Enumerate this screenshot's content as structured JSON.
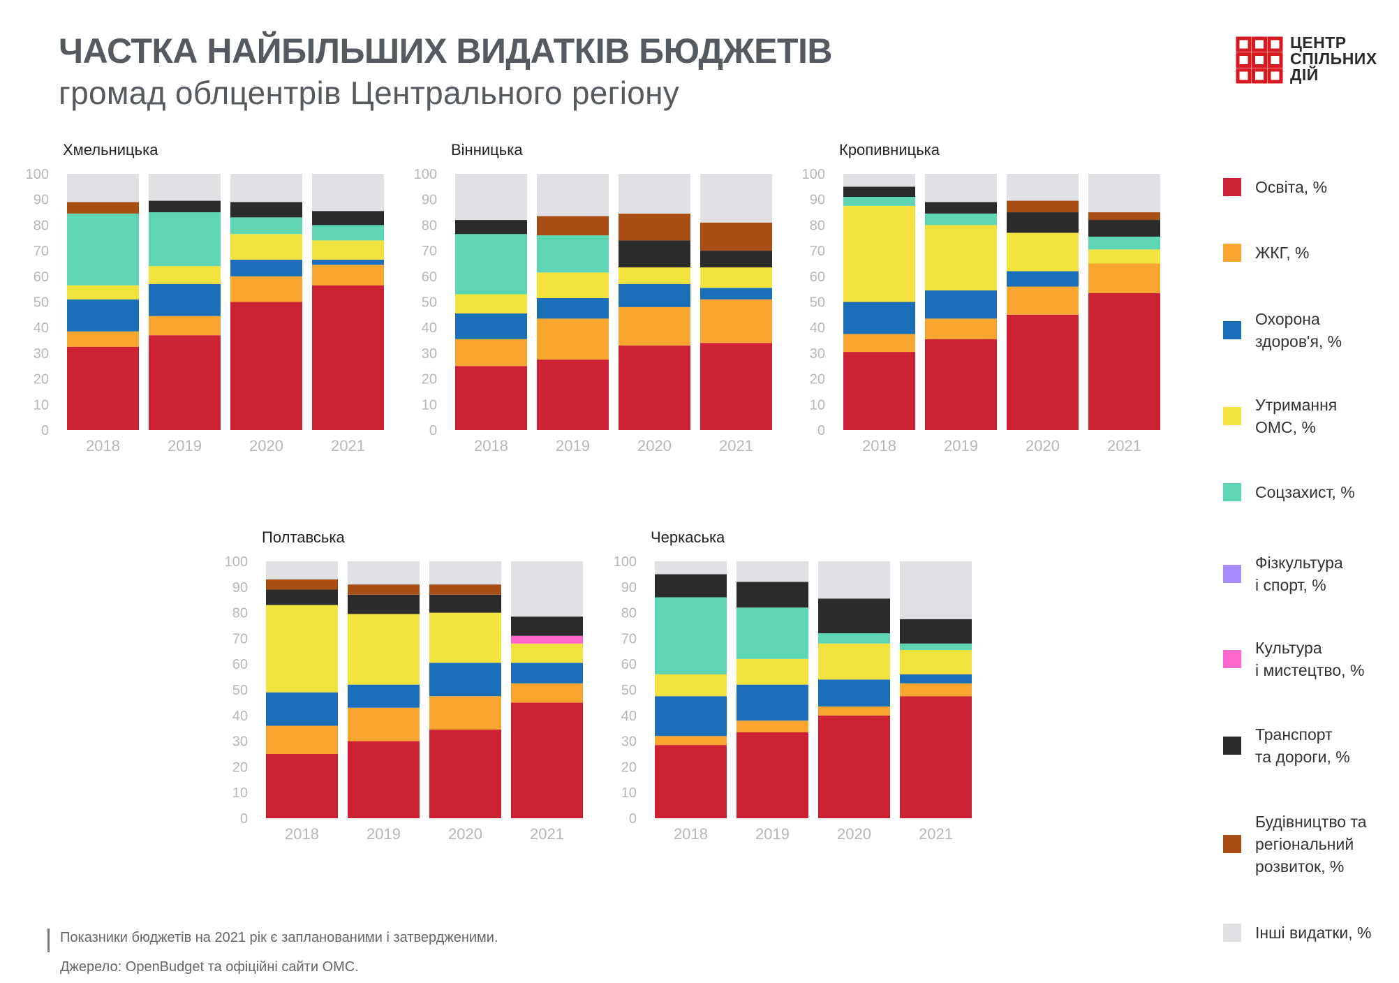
{
  "title": "ЧАСТКА НАЙБІЛЬШИХ ВИДАТКІВ БЮДЖЕТІВ",
  "subtitle": "громад облцентрів Центрального регіону",
  "logo": {
    "lines": [
      "ЦЕНТР",
      "СПІЛЬНИХ",
      "ДІЙ"
    ],
    "color": "#d71920"
  },
  "footer": {
    "note": "Показники бюджетів на 2021 рік є запланованими і затвердженими.",
    "source": "Джерело: OpenBudget та офіційні сайти ОМС."
  },
  "legend": [
    {
      "key": "edu",
      "label": "Освіта, %",
      "color": "#cc2233"
    },
    {
      "key": "zhkg",
      "label": "ЖКГ, %",
      "color": "#f9a630"
    },
    {
      "key": "health",
      "label": "Охорона\nздоров'я, %",
      "color": "#1b6fb8"
    },
    {
      "key": "oms",
      "label": "Утримання\nОМС, %",
      "color": "#f2e23e"
    },
    {
      "key": "social",
      "label": "Соцзахист, %",
      "color": "#5ed6b4"
    },
    {
      "key": "sport",
      "label": "Фізкультура\nі спорт, %",
      "color": "#a78bfa"
    },
    {
      "key": "culture",
      "label": "Культура\nі мистецтво, %",
      "color": "#ff66cc"
    },
    {
      "key": "transport",
      "label": "Транспорт\nта дороги, %",
      "color": "#2b2b2b"
    },
    {
      "key": "construction",
      "label": "Будівництво та\nрегіональний\nрозвиток, %",
      "color": "#a84d14"
    },
    {
      "key": "other",
      "label": "Інші  видатки, %",
      "color": "#dfe1e4"
    }
  ],
  "chart_data": [
    {
      "type": "bar",
      "stacked": true,
      "title": "Хмельницька",
      "categories": [
        "2018",
        "2019",
        "2020",
        "2021"
      ],
      "ylim": [
        0,
        100
      ],
      "yticks": [
        0,
        10,
        20,
        30,
        40,
        50,
        60,
        70,
        80,
        90,
        100
      ],
      "series": [
        {
          "name": "Освіта, %",
          "values": [
            32.5,
            37,
            50,
            56.5
          ]
        },
        {
          "name": "ЖКГ, %",
          "values": [
            6,
            7.5,
            10,
            8
          ]
        },
        {
          "name": "Охорона здоров'я, %",
          "values": [
            12.5,
            12.5,
            6.5,
            2
          ]
        },
        {
          "name": "Утримання ОМС, %",
          "values": [
            5.5,
            7,
            10,
            7.5
          ]
        },
        {
          "name": "Соцзахист, %",
          "values": [
            28,
            21,
            6.5,
            6
          ]
        },
        {
          "name": "Фізкультура і спорт, %",
          "values": [
            0,
            0,
            0,
            0
          ]
        },
        {
          "name": "Культура і мистецтво, %",
          "values": [
            0,
            0,
            0,
            0
          ]
        },
        {
          "name": "Транспорт та дороги, %",
          "values": [
            0,
            4.5,
            6,
            5.5
          ]
        },
        {
          "name": "Будівництво та регіональний розвиток, %",
          "values": [
            4.5,
            0,
            0,
            0
          ]
        },
        {
          "name": "Інші  видатки, %",
          "values": [
            11,
            10.5,
            11,
            14.5
          ]
        }
      ]
    },
    {
      "type": "bar",
      "stacked": true,
      "title": "Вінницька",
      "categories": [
        "2018",
        "2019",
        "2020",
        "2021"
      ],
      "ylim": [
        0,
        100
      ],
      "yticks": [
        0,
        10,
        20,
        30,
        40,
        50,
        60,
        70,
        80,
        90,
        100
      ],
      "series": [
        {
          "name": "Освіта, %",
          "values": [
            25,
            27.5,
            33,
            34
          ]
        },
        {
          "name": "ЖКГ, %",
          "values": [
            10.5,
            16,
            15,
            17
          ]
        },
        {
          "name": "Охорона здоров'я, %",
          "values": [
            10,
            8,
            9,
            4.5
          ]
        },
        {
          "name": "Утримання ОМС, %",
          "values": [
            7.5,
            10,
            6.5,
            8
          ]
        },
        {
          "name": "Соцзахист, %",
          "values": [
            23.5,
            14.5,
            0,
            0
          ]
        },
        {
          "name": "Фізкультура і спорт, %",
          "values": [
            0,
            0,
            0,
            0
          ]
        },
        {
          "name": "Культура і мистецтво, %",
          "values": [
            0,
            0,
            0,
            0
          ]
        },
        {
          "name": "Транспорт та дороги, %",
          "values": [
            5.5,
            0,
            10.5,
            6.5
          ]
        },
        {
          "name": "Будівництво та регіональний розвиток, %",
          "values": [
            0,
            7.5,
            10.5,
            11
          ]
        },
        {
          "name": "Інші  видатки, %",
          "values": [
            18,
            16.5,
            15.5,
            19
          ]
        }
      ]
    },
    {
      "type": "bar",
      "stacked": true,
      "title": "Кропивницька",
      "categories": [
        "2018",
        "2019",
        "2020",
        "2021"
      ],
      "ylim": [
        0,
        100
      ],
      "yticks": [
        0,
        10,
        20,
        30,
        40,
        50,
        60,
        70,
        80,
        90,
        100
      ],
      "series": [
        {
          "name": "Освіта, %",
          "values": [
            30.5,
            35.5,
            45,
            53.5
          ]
        },
        {
          "name": "ЖКГ, %",
          "values": [
            7,
            8,
            11,
            11.5
          ]
        },
        {
          "name": "Охорона здоров'я, %",
          "values": [
            12.5,
            11,
            6,
            0
          ]
        },
        {
          "name": "Утримання ОМС, %",
          "values": [
            37.5,
            25.5,
            15,
            5.5
          ]
        },
        {
          "name": "Соцзахист, %",
          "values": [
            3.5,
            4.5,
            0,
            5
          ]
        },
        {
          "name": "Фізкультура і спорт, %",
          "values": [
            0,
            0,
            0,
            0
          ]
        },
        {
          "name": "Культура і мистецтво, %",
          "values": [
            0,
            0,
            0,
            0
          ]
        },
        {
          "name": "Транспорт та дороги, %",
          "values": [
            4,
            4.5,
            8,
            6.5
          ]
        },
        {
          "name": "Будівництво та регіональний розвиток, %",
          "values": [
            0,
            0,
            4.5,
            3
          ]
        },
        {
          "name": "Інші  видатки, %",
          "values": [
            5,
            11,
            10.5,
            15
          ]
        }
      ]
    },
    {
      "type": "bar",
      "stacked": true,
      "title": "Полтавська",
      "categories": [
        "2018",
        "2019",
        "2020",
        "2021"
      ],
      "ylim": [
        0,
        100
      ],
      "yticks": [
        0,
        10,
        20,
        30,
        40,
        50,
        60,
        70,
        80,
        90,
        100
      ],
      "series": [
        {
          "name": "Освіта, %",
          "values": [
            25,
            30,
            34.5,
            45
          ]
        },
        {
          "name": "ЖКГ, %",
          "values": [
            11,
            13,
            13,
            7.5
          ]
        },
        {
          "name": "Охорона здоров'я, %",
          "values": [
            13,
            9,
            13,
            8
          ]
        },
        {
          "name": "Утримання ОМС, %",
          "values": [
            34,
            27.5,
            19.5,
            7.5
          ]
        },
        {
          "name": "Соцзахист, %",
          "values": [
            0,
            0,
            0,
            0
          ]
        },
        {
          "name": "Фізкультура і спорт, %",
          "values": [
            0,
            0,
            0,
            0
          ]
        },
        {
          "name": "Культура і мистецтво, %",
          "values": [
            0,
            0,
            0,
            3
          ]
        },
        {
          "name": "Транспорт та дороги, %",
          "values": [
            6,
            7.5,
            7,
            7.5
          ]
        },
        {
          "name": "Будівництво та регіональний розвиток, %",
          "values": [
            4,
            4,
            4,
            0
          ]
        },
        {
          "name": "Інші  видатки, %",
          "values": [
            7,
            9,
            9,
            21.5
          ]
        }
      ]
    },
    {
      "type": "bar",
      "stacked": true,
      "title": "Черкаська",
      "categories": [
        "2018",
        "2019",
        "2020",
        "2021"
      ],
      "ylim": [
        0,
        100
      ],
      "yticks": [
        0,
        10,
        20,
        30,
        40,
        50,
        60,
        70,
        80,
        90,
        100
      ],
      "series": [
        {
          "name": "Освіта, %",
          "values": [
            28.5,
            33.5,
            40,
            47.5
          ]
        },
        {
          "name": "ЖКГ, %",
          "values": [
            3.5,
            4.5,
            3.5,
            5
          ]
        },
        {
          "name": "Охорона здоров'я, %",
          "values": [
            15.5,
            14,
            10.5,
            3.5
          ]
        },
        {
          "name": "Утримання ОМС, %",
          "values": [
            8.5,
            10,
            14,
            9.5
          ]
        },
        {
          "name": "Соцзахист, %",
          "values": [
            30,
            20,
            4,
            2.5
          ]
        },
        {
          "name": "Фізкультура і спорт, %",
          "values": [
            0,
            0,
            0,
            0
          ]
        },
        {
          "name": "Культура і мистецтво, %",
          "values": [
            0,
            0,
            0,
            0
          ]
        },
        {
          "name": "Транспорт та дороги, %",
          "values": [
            9,
            10,
            13.5,
            9.5
          ]
        },
        {
          "name": "Будівництво та регіональний розвиток, %",
          "values": [
            0,
            0,
            0,
            0
          ]
        },
        {
          "name": "Інші  видатки, %",
          "values": [
            5,
            8,
            14.5,
            22.5
          ]
        }
      ]
    }
  ]
}
